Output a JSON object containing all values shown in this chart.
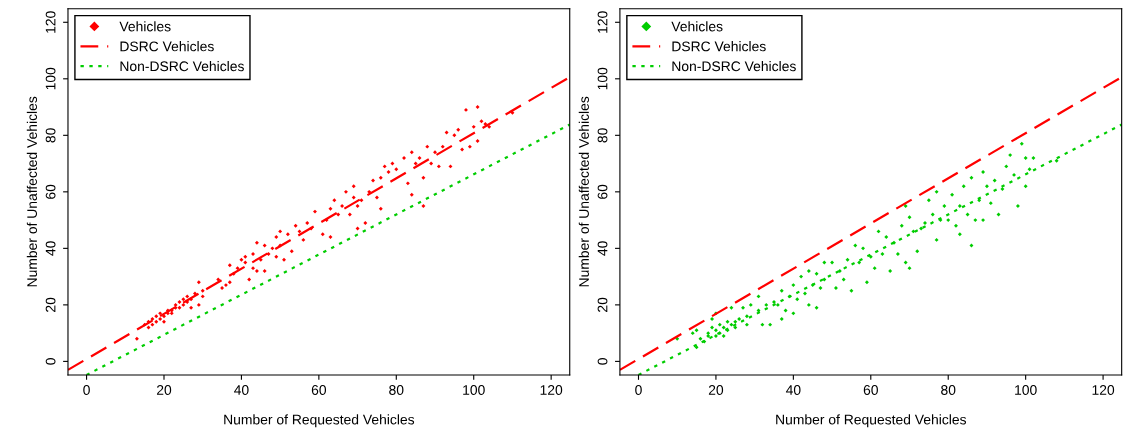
{
  "chart_data": [
    {
      "type": "scatter",
      "xlabel": "Number of Requested Vehicles",
      "ylabel": "Number of Unaffected Vehicles",
      "xlim": [
        -4.8,
        124.8
      ],
      "ylim": [
        -4.8,
        124.8
      ],
      "xticks": [
        0,
        20,
        40,
        60,
        80,
        100,
        120
      ],
      "yticks": [
        0,
        20,
        40,
        60,
        80,
        100,
        120
      ],
      "grid": false,
      "legend": "top left",
      "series": [
        {
          "name": "Vehicles",
          "marker": "diamond",
          "color": "#ff0000",
          "x": [
            13,
            15,
            16,
            16,
            17,
            17,
            18,
            18,
            19,
            19,
            20,
            20,
            21,
            21,
            22,
            22,
            23,
            23,
            24,
            24,
            25,
            25,
            26,
            26,
            27,
            27,
            28,
            29,
            29,
            30,
            30,
            34,
            35,
            36,
            37,
            37,
            38,
            39,
            40,
            41,
            41,
            42,
            43,
            43,
            44,
            44,
            45,
            46,
            46,
            47,
            48,
            49,
            49,
            50,
            50,
            51,
            52,
            53,
            54,
            55,
            56,
            57,
            58,
            59,
            61,
            62,
            63,
            63,
            64,
            65,
            66,
            67,
            68,
            69,
            69,
            70,
            70,
            71,
            72,
            73,
            74,
            75,
            76,
            76,
            77,
            78,
            79,
            80,
            82,
            83,
            84,
            84,
            85,
            86,
            87,
            87,
            88,
            89,
            90,
            91,
            92,
            93,
            94,
            95,
            96,
            97,
            98,
            99,
            100,
            101,
            101,
            102,
            103,
            104,
            110
          ],
          "values": [
            8,
            13,
            12,
            14,
            15,
            13,
            16,
            14,
            17,
            15,
            16,
            14,
            18,
            17,
            18,
            17,
            19,
            20,
            21,
            19,
            22,
            20,
            23,
            21,
            22,
            19,
            24,
            28,
            20,
            25,
            23,
            29,
            26,
            27,
            28,
            34,
            31,
            33,
            36,
            35,
            37,
            29,
            38,
            33,
            42,
            32,
            36,
            41,
            32,
            38,
            40,
            37,
            44,
            46,
            41,
            36,
            45,
            39,
            48,
            46,
            43,
            49,
            47,
            53,
            45,
            50,
            54,
            44,
            57,
            52,
            55,
            60,
            52,
            58,
            62,
            47,
            55,
            57,
            49,
            60,
            64,
            58,
            54,
            65,
            69,
            67,
            70,
            68,
            72,
            63,
            74,
            59,
            70,
            72,
            55,
            65,
            76,
            70,
            74,
            69,
            76,
            81,
            69,
            80,
            82,
            75,
            89,
            76,
            83,
            90,
            78,
            85,
            84,
            83,
            88
          ]
        },
        {
          "name": "DSRC Vehicles",
          "type": "line",
          "line_style": "dashed",
          "marker": "none",
          "color": "#ff0000",
          "x": [
            -4.8,
            124.8
          ],
          "values": [
            -3,
            100.6
          ]
        },
        {
          "name": "Non-DSRC Vehicles",
          "type": "line",
          "line_style": "dotted",
          "marker": "none",
          "color": "#00cd00",
          "x": [
            0,
            124.8
          ],
          "values": [
            -4.8,
            83.8
          ]
        }
      ]
    },
    {
      "type": "scatter",
      "xlabel": "Number of Requested Vehicles",
      "ylabel": "Number of Unaffected Vehicles",
      "xlim": [
        -4.8,
        124.8
      ],
      "ylim": [
        -4.8,
        124.8
      ],
      "xticks": [
        0,
        20,
        40,
        60,
        80,
        100,
        120
      ],
      "yticks": [
        0,
        20,
        40,
        60,
        80,
        100,
        120
      ],
      "grid": false,
      "legend": "top left",
      "series": [
        {
          "name": "Vehicles",
          "marker": "diamond",
          "color": "#00cd00",
          "x": [
            10,
            14,
            15,
            15,
            16,
            17,
            18,
            18,
            19,
            19,
            20,
            20,
            20,
            21,
            21,
            22,
            22,
            23,
            23,
            24,
            24,
            25,
            25,
            26,
            27,
            28,
            28,
            29,
            31,
            31,
            32,
            33,
            34,
            35,
            36,
            37,
            37,
            38,
            39,
            40,
            40,
            41,
            42,
            43,
            44,
            44,
            45,
            46,
            46,
            47,
            48,
            48,
            50,
            51,
            52,
            53,
            54,
            55,
            56,
            57,
            58,
            59,
            60,
            61,
            62,
            63,
            64,
            65,
            66,
            67,
            68,
            69,
            69,
            70,
            70,
            71,
            72,
            73,
            74,
            75,
            76,
            77,
            77,
            78,
            79,
            80,
            81,
            82,
            83,
            83,
            84,
            85,
            86,
            86,
            87,
            88,
            89,
            89,
            90,
            91,
            92,
            93,
            94,
            95,
            96,
            97,
            98,
            99,
            100,
            100,
            101,
            102,
            108
          ],
          "values": [
            8,
            10,
            5,
            11,
            8,
            7,
            10,
            9,
            12,
            15,
            11,
            9,
            17,
            13,
            10,
            12,
            9,
            11,
            14,
            13,
            19,
            14,
            12,
            15,
            19,
            16,
            13,
            20,
            18,
            23,
            13,
            20,
            13,
            21,
            20,
            15,
            25,
            18,
            23,
            27,
            17,
            22,
            30,
            24,
            32,
            20,
            27,
            31,
            19,
            26,
            35,
            29,
            35,
            26,
            32,
            29,
            36,
            25,
            41,
            35,
            40,
            28,
            37,
            33,
            46,
            38,
            44,
            32,
            42,
            38,
            48,
            55,
            35,
            51,
            33,
            46,
            39,
            47,
            49,
            57,
            52,
            43,
            60,
            50,
            55,
            50,
            59,
            48,
            55,
            45,
            62,
            52,
            41,
            65,
            50,
            57,
            67,
            50,
            62,
            56,
            64,
            52,
            61,
            69,
            73,
            66,
            55,
            77,
            62,
            72,
            68,
            72,
            71
          ]
        },
        {
          "name": "DSRC Vehicles",
          "type": "line",
          "line_style": "dashed",
          "marker": "none",
          "color": "#ff0000",
          "x": [
            -4.8,
            124.8
          ],
          "values": [
            -3,
            100.6
          ]
        },
        {
          "name": "Non-DSRC Vehicles",
          "type": "line",
          "line_style": "dotted",
          "marker": "none",
          "color": "#00cd00",
          "x": [
            0,
            124.8
          ],
          "values": [
            -4.8,
            83.8
          ]
        }
      ]
    }
  ]
}
